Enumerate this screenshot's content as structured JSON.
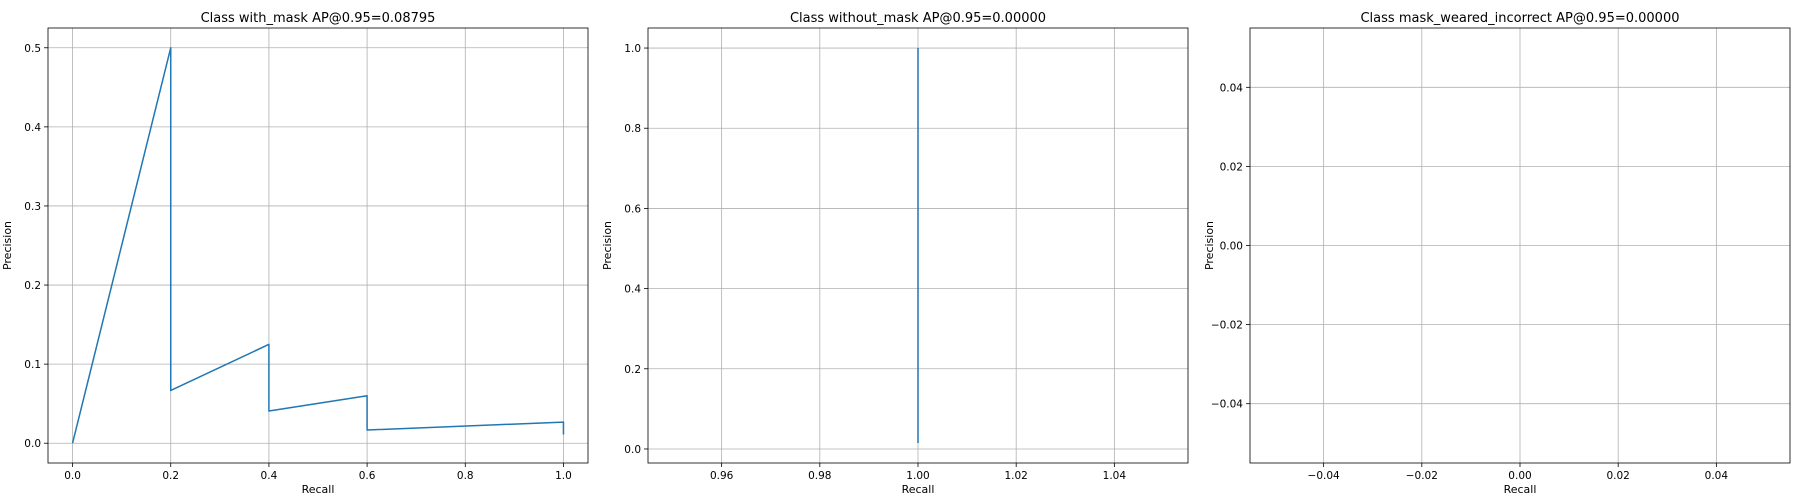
{
  "chart_data": [
    {
      "type": "line",
      "title": "Class with_mask AP@0.95=0.08795",
      "xlabel": "Recall",
      "ylabel": "Precision",
      "xlim": [
        -0.05,
        1.05
      ],
      "ylim": [
        -0.025,
        0.525
      ],
      "xticks": [
        0.0,
        0.2,
        0.4,
        0.6,
        0.8,
        1.0
      ],
      "xtick_labels": [
        "0.0",
        "0.2",
        "0.4",
        "0.6",
        "0.8",
        "1.0"
      ],
      "yticks": [
        0.0,
        0.1,
        0.2,
        0.3,
        0.4,
        0.5
      ],
      "ytick_labels": [
        "0.0",
        "0.1",
        "0.2",
        "0.3",
        "0.4",
        "0.5"
      ],
      "grid": true,
      "color": "#1f77b4",
      "series": [
        {
          "x": [
            0.0,
            0.2,
            0.2,
            0.4,
            0.4,
            0.6,
            0.6,
            1.0,
            1.0
          ],
          "y": [
            0.0,
            0.5,
            0.0667,
            0.125,
            0.0408,
            0.06,
            0.0167,
            0.0267,
            0.0111
          ]
        }
      ]
    },
    {
      "type": "line",
      "title": "Class without_mask AP@0.95=0.00000",
      "xlabel": "Recall",
      "ylabel": "Precision",
      "xlim": [
        0.945,
        1.055
      ],
      "ylim": [
        -0.035,
        1.05
      ],
      "xticks": [
        0.96,
        0.98,
        1.0,
        1.02,
        1.04
      ],
      "xtick_labels": [
        "0.96",
        "0.98",
        "1.00",
        "1.02",
        "1.04"
      ],
      "yticks": [
        0.0,
        0.2,
        0.4,
        0.6,
        0.8,
        1.0
      ],
      "ytick_labels": [
        "0.0",
        "0.2",
        "0.4",
        "0.6",
        "0.8",
        "1.0"
      ],
      "grid": true,
      "color": "#1f77b4",
      "series": [
        {
          "x": [
            1.0,
            1.0
          ],
          "y": [
            1.0,
            0.015
          ]
        }
      ]
    },
    {
      "type": "line",
      "title": "Class mask_weared_incorrect AP@0.95=0.00000",
      "xlabel": "Recall",
      "ylabel": "Precision",
      "xlim": [
        -0.055,
        0.055
      ],
      "ylim": [
        -0.055,
        0.055
      ],
      "xticks": [
        -0.04,
        -0.02,
        0.0,
        0.02,
        0.04
      ],
      "xtick_labels": [
        "−0.04",
        "−0.02",
        "0.00",
        "0.02",
        "0.04"
      ],
      "yticks": [
        -0.04,
        -0.02,
        0.0,
        0.02,
        0.04
      ],
      "ytick_labels": [
        "−0.04",
        "−0.02",
        "0.00",
        "0.02",
        "0.04"
      ],
      "grid": true,
      "color": "#1f77b4",
      "series": []
    }
  ]
}
